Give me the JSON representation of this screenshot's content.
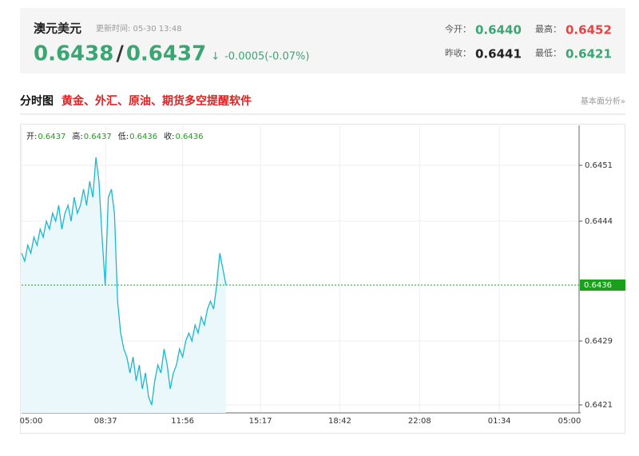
{
  "header": {
    "name": "澳元美元",
    "update_time": "更新时间: 05-30 13:48",
    "bid": "0.6438",
    "separator": "/",
    "ask": "0.6437",
    "arrow": "↓",
    "change": "-0.0005(-0.07%)",
    "stats": [
      {
        "label": "今开：",
        "value": "0.6440"
      },
      {
        "label": "最高：",
        "value": "0.6452"
      },
      {
        "label": "昨收：",
        "value": "0.6441"
      },
      {
        "label": "最低：",
        "value": "0.6421"
      }
    ]
  },
  "section": {
    "title": "分时图",
    "promo": "黄金、外汇、原油、期货多空提醒软件",
    "link": "基本面分析»"
  },
  "chart_data": {
    "type": "line",
    "color": "#1cb8cf",
    "fill": "#eaf7fb",
    "info": [
      {
        "label": "开:",
        "value": 0.6437
      },
      {
        "label": "高:",
        "value": 0.6437
      },
      {
        "label": "低:",
        "value": 0.6436
      },
      {
        "label": "收:",
        "value": 0.6436
      }
    ],
    "x": [
      "05:00",
      "05:08",
      "05:16",
      "05:24",
      "05:32",
      "05:40",
      "05:48",
      "05:56",
      "06:04",
      "06:12",
      "06:20",
      "06:28",
      "06:36",
      "06:44",
      "06:52",
      "07:00",
      "07:08",
      "07:16",
      "07:24",
      "07:32",
      "07:40",
      "07:48",
      "07:56",
      "08:04",
      "08:12",
      "08:20",
      "08:28",
      "08:36",
      "08:44",
      "08:52",
      "09:00",
      "09:08",
      "09:16",
      "09:24",
      "09:32",
      "09:40",
      "09:48",
      "09:56",
      "10:04",
      "10:12",
      "10:20",
      "10:28",
      "10:36",
      "10:44",
      "10:52",
      "11:00",
      "11:08",
      "11:16",
      "11:24",
      "11:32",
      "11:40",
      "11:48",
      "11:56",
      "12:04",
      "12:12",
      "12:20",
      "12:28",
      "12:36",
      "12:44",
      "12:52",
      "13:00",
      "13:08",
      "13:16",
      "13:24",
      "13:32",
      "13:40",
      "13:48"
    ],
    "values": [
      0.644,
      0.6439,
      0.6441,
      0.644,
      0.6442,
      0.6441,
      0.6443,
      0.6442,
      0.6444,
      0.6443,
      0.6445,
      0.6444,
      0.6446,
      0.6443,
      0.6445,
      0.6446,
      0.6444,
      0.6447,
      0.6445,
      0.6446,
      0.6448,
      0.6446,
      0.6449,
      0.6447,
      0.6452,
      0.6449,
      0.6442,
      0.6436,
      0.6447,
      0.6448,
      0.6445,
      0.6434,
      0.643,
      0.6428,
      0.6427,
      0.6425,
      0.6427,
      0.6424,
      0.6426,
      0.6423,
      0.6425,
      0.6422,
      0.6421,
      0.6424,
      0.6426,
      0.6425,
      0.6428,
      0.6426,
      0.6423,
      0.6425,
      0.6426,
      0.6428,
      0.6427,
      0.6429,
      0.643,
      0.6429,
      0.6431,
      0.643,
      0.6432,
      0.6431,
      0.6433,
      0.6434,
      0.6433,
      0.6436,
      0.644,
      0.6438,
      0.6436
    ],
    "xlim": [
      "05:00",
      "05:00"
    ],
    "xticks": [
      "05:00",
      "08:37",
      "11:56",
      "15:17",
      "18:42",
      "22:08",
      "01:34",
      "05:00"
    ],
    "ylim": [
      0.642,
      0.6456
    ],
    "yticks": [
      0.6451,
      0.6444,
      0.6429,
      0.6421
    ],
    "last_price": 0.6436,
    "last_color": "#1aa01a",
    "grid": true
  }
}
